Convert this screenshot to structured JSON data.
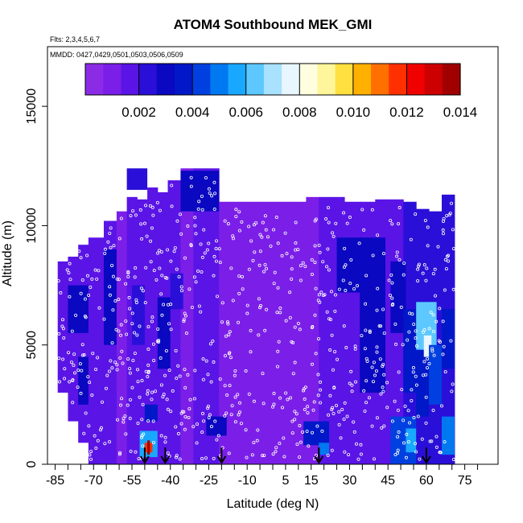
{
  "chart_data": {
    "type": "heatmap",
    "title": "ATOM4 Southbound MEK_GMI",
    "subtitle_flights": "Flts: 2,3,4,5,6,7",
    "subtitle_dates": "MMDD: 0427,0429,0501,0503,0506,0509",
    "xlabel": "Latitude (deg N)",
    "ylabel": "Altitude (m)",
    "xlim": [
      -88,
      88
    ],
    "ylim": [
      0,
      17500
    ],
    "x_ticks": [
      -85,
      -70,
      -55,
      -40,
      -25,
      -10,
      5,
      15,
      30,
      45,
      60,
      75
    ],
    "y_ticks": [
      0,
      5000,
      10000,
      15000
    ],
    "colorbar": {
      "range": [
        0.0,
        0.014
      ],
      "ticks": [
        0.002,
        0.004,
        0.006,
        0.008,
        0.01,
        0.012,
        0.014
      ],
      "tick_labels": [
        "0.002",
        "0.004",
        "0.006",
        "0.008",
        "0.010",
        "0.012",
        "0.014"
      ],
      "colors": [
        "#8b2be6",
        "#7b1fe8",
        "#5a14e6",
        "#2a0fd8",
        "#0a08c0",
        "#0018c8",
        "#0040e0",
        "#0078f0",
        "#18a8ff",
        "#5cc8ff",
        "#a8e2ff",
        "#e8f6ff",
        "#ffffe0",
        "#fff59a",
        "#ffe040",
        "#ffb000",
        "#ff7000",
        "#ff3000",
        "#f00000",
        "#cc0000",
        "#a00000"
      ]
    },
    "arrow_latitudes": [
      -50,
      -42,
      -20,
      18,
      60
    ],
    "columns": [
      {
        "x0": -84,
        "x1": -80,
        "top": 8500,
        "bottom": 3000,
        "base": 0.0015
      },
      {
        "x0": -80,
        "x1": -76,
        "top": 8700,
        "bottom": 1800,
        "base": 0.0017
      },
      {
        "x0": -76,
        "x1": -72,
        "top": 9200,
        "bottom": 900,
        "base": 0.0016
      },
      {
        "x0": -72,
        "x1": -66,
        "top": 9500,
        "bottom": 0,
        "base": 0.0015
      },
      {
        "x0": -66,
        "x1": -61,
        "top": 10200,
        "bottom": 0,
        "base": 0.0016
      },
      {
        "x0": -61,
        "x1": -57,
        "top": 10600,
        "bottom": 0,
        "base": 0.0013
      },
      {
        "x0": -57,
        "x1": -53,
        "top": 11200,
        "bottom": 0,
        "base": 0.0014
      },
      {
        "x0": -53,
        "x1": -49,
        "top": 11100,
        "bottom": 0,
        "base": 0.0018
      },
      {
        "x0": -49,
        "x1": -45,
        "top": 11600,
        "bottom": 0,
        "base": 0.0016
      },
      {
        "x0": -45,
        "x1": -41,
        "top": 11400,
        "bottom": 0,
        "base": 0.0017
      },
      {
        "x0": -41,
        "x1": -36,
        "top": 11900,
        "bottom": 0,
        "base": 0.0014
      },
      {
        "x0": -36,
        "x1": -31,
        "top": 12400,
        "bottom": 0,
        "base": 0.0013
      },
      {
        "x0": -31,
        "x1": -26,
        "top": 12400,
        "bottom": 0,
        "base": 0.0014
      },
      {
        "x0": -26,
        "x1": -21,
        "top": 12400,
        "bottom": 0,
        "base": 0.0015
      },
      {
        "x0": -21,
        "x1": -16,
        "top": 11000,
        "bottom": 0,
        "base": 0.0012
      },
      {
        "x0": -16,
        "x1": -10,
        "top": 11000,
        "bottom": 0,
        "base": 0.0011
      },
      {
        "x0": -10,
        "x1": -4,
        "top": 11000,
        "bottom": 0,
        "base": 0.0011
      },
      {
        "x0": -4,
        "x1": 2,
        "top": 11000,
        "bottom": 0,
        "base": 0.001
      },
      {
        "x0": 2,
        "x1": 8,
        "top": 11000,
        "bottom": 0,
        "base": 0.0011
      },
      {
        "x0": 8,
        "x1": 13,
        "top": 11000,
        "bottom": 0,
        "base": 0.0012
      },
      {
        "x0": 13,
        "x1": 18,
        "top": 11200,
        "bottom": 0,
        "base": 0.0013
      },
      {
        "x0": 18,
        "x1": 23,
        "top": 11200,
        "bottom": 0,
        "base": 0.0014
      },
      {
        "x0": 23,
        "x1": 28,
        "top": 11200,
        "bottom": 0,
        "base": 0.0016
      },
      {
        "x0": 28,
        "x1": 34,
        "top": 11000,
        "bottom": 0,
        "base": 0.0015
      },
      {
        "x0": 34,
        "x1": 40,
        "top": 11000,
        "bottom": 0,
        "base": 0.0016
      },
      {
        "x0": 40,
        "x1": 46,
        "top": 11100,
        "bottom": 0,
        "base": 0.0018
      },
      {
        "x0": 46,
        "x1": 51,
        "top": 11100,
        "bottom": 0,
        "base": 0.0019
      },
      {
        "x0": 51,
        "x1": 56,
        "top": 11000,
        "bottom": 0,
        "base": 0.002
      },
      {
        "x0": 56,
        "x1": 61,
        "top": 10700,
        "bottom": 0,
        "base": 0.0022
      },
      {
        "x0": 61,
        "x1": 66,
        "top": 10600,
        "bottom": 0,
        "base": 0.0025
      },
      {
        "x0": 66,
        "x1": 71,
        "top": 11300,
        "bottom": 0,
        "base": 0.002
      }
    ],
    "features": [
      {
        "lat": [
          -57,
          -49
        ],
        "alt": [
          11500,
          12400
        ],
        "value": 0.002
      },
      {
        "lat": [
          -36,
          -21
        ],
        "alt": [
          10600,
          12300
        ],
        "value": 0.003
      },
      {
        "lat": [
          -66,
          -61
        ],
        "alt": [
          5000,
          9000
        ],
        "value": 0.0028
      },
      {
        "lat": [
          -80,
          -72
        ],
        "alt": [
          5500,
          7500
        ],
        "value": 0.0032
      },
      {
        "lat": [
          -76,
          -72
        ],
        "alt": [
          2500,
          4500
        ],
        "value": 0.003
      },
      {
        "lat": [
          -55,
          -50
        ],
        "alt": [
          5000,
          7500
        ],
        "value": 0.0025
      },
      {
        "lat": [
          -45,
          -40
        ],
        "alt": [
          4000,
          7000
        ],
        "value": 0.0032
      },
      {
        "lat": [
          -40,
          -35
        ],
        "alt": [
          6500,
          8000
        ],
        "value": 0.0026
      },
      {
        "lat": [
          -50,
          -45
        ],
        "alt": [
          1800,
          2500
        ],
        "value": 0.0035
      },
      {
        "lat": [
          -52,
          -45
        ],
        "alt": [
          300,
          1400
        ],
        "value": 0.0055
      },
      {
        "lat": [
          -50,
          -47
        ],
        "alt": [
          500,
          900
        ],
        "value": 0.0118
      },
      {
        "lat": [
          -49,
          -48
        ],
        "alt": [
          400,
          1000
        ],
        "value": 0.0135
      },
      {
        "lat": [
          -26,
          -18
        ],
        "alt": [
          1200,
          2000
        ],
        "value": 0.0032
      },
      {
        "lat": [
          12,
          22
        ],
        "alt": [
          800,
          1800
        ],
        "value": 0.0036
      },
      {
        "lat": [
          18,
          22
        ],
        "alt": [
          400,
          900
        ],
        "value": 0.0048
      },
      {
        "lat": [
          25,
          35
        ],
        "alt": [
          7200,
          9500
        ],
        "value": 0.0028
      },
      {
        "lat": [
          34,
          44
        ],
        "alt": [
          3000,
          9500
        ],
        "value": 0.003
      },
      {
        "lat": [
          46,
          52
        ],
        "alt": [
          5500,
          8500
        ],
        "value": 0.0028
      },
      {
        "lat": [
          51,
          56
        ],
        "alt": [
          3000,
          6500
        ],
        "value": 0.0034
      },
      {
        "lat": [
          56,
          61
        ],
        "alt": [
          2000,
          5000
        ],
        "value": 0.0034
      },
      {
        "lat": [
          56,
          64
        ],
        "alt": [
          4800,
          6800
        ],
        "value": 0.0062
      },
      {
        "lat": [
          59,
          62
        ],
        "alt": [
          4500,
          5400
        ],
        "value": 0.0075
      },
      {
        "lat": [
          46,
          56
        ],
        "alt": [
          0,
          2000
        ],
        "value": 0.0042
      },
      {
        "lat": [
          52,
          56
        ],
        "alt": [
          500,
          1500
        ],
        "value": 0.0055
      },
      {
        "lat": [
          61,
          66
        ],
        "alt": [
          2500,
          5000
        ],
        "value": 0.004
      },
      {
        "lat": [
          66,
          71
        ],
        "alt": [
          400,
          2000
        ],
        "value": 0.005
      },
      {
        "lat": [
          66,
          71
        ],
        "alt": [
          4000,
          6500
        ],
        "value": 0.0035
      }
    ]
  }
}
